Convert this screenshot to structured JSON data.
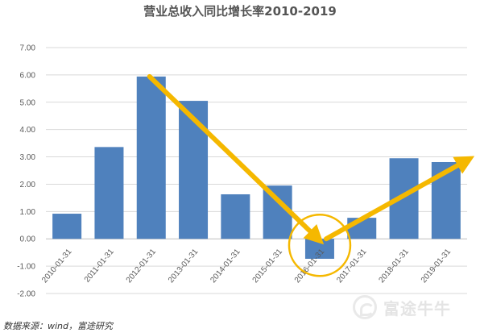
{
  "chart_data": {
    "type": "bar",
    "title": "营业总收入同比增长率2010-2019",
    "categories": [
      "2010-01-31",
      "2011-01-31",
      "2012-01-31",
      "2013-01-31",
      "2014-01-31",
      "2015-01-31",
      "2016-01-31",
      "2017-01-31",
      "2018-01-31",
      "2019-01-31"
    ],
    "values": [
      0.92,
      3.36,
      5.94,
      5.05,
      1.63,
      1.95,
      -0.73,
      0.77,
      2.95,
      2.81
    ],
    "ylim": [
      -2.0,
      7.0
    ],
    "yticks": [
      "7.00",
      "6.00",
      "5.00",
      "4.00",
      "3.00",
      "2.00",
      "1.00",
      "0.00",
      "-1.00",
      "-2.00"
    ],
    "grid": true,
    "bar_color": "#4f81bd",
    "annotation_color": "#f5b800"
  },
  "footer": {
    "source": "数据来源：wind，富途研究"
  },
  "watermark": {
    "text": "富途牛牛",
    "icon": "futu-logo-icon"
  }
}
